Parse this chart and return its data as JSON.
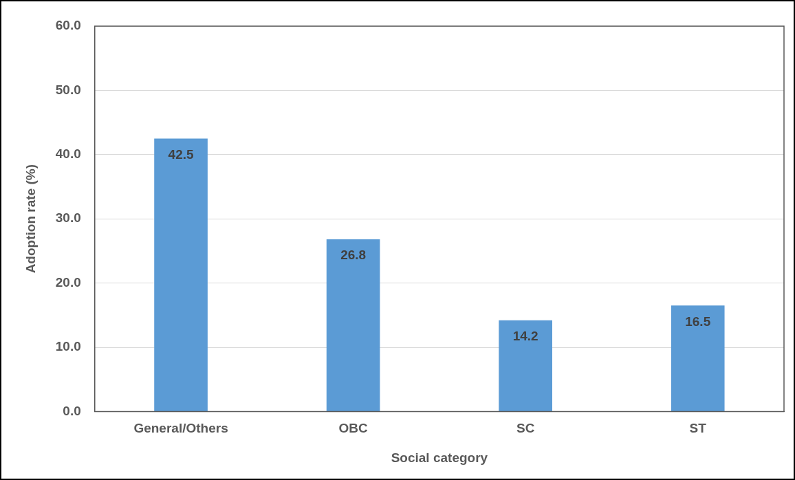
{
  "chart_data": {
    "type": "bar",
    "xlabel": "Social category",
    "ylabel": "Adoption rate (%)",
    "categories": [
      "General/Others",
      "OBC",
      "SC",
      "ST"
    ],
    "values": [
      42.5,
      26.8,
      14.2,
      16.5
    ],
    "color": "#5b9bd5",
    "ylim": [
      0,
      60
    ],
    "yticks": [
      {
        "value": 0,
        "label": "0.0"
      },
      {
        "value": 10,
        "label": "10.0"
      },
      {
        "value": 20,
        "label": "20.0"
      },
      {
        "value": 30,
        "label": "30.0"
      },
      {
        "value": 40,
        "label": "40.0"
      },
      {
        "value": 50,
        "label": "50.0"
      },
      {
        "value": 60,
        "label": "60.0"
      }
    ],
    "grid": "y",
    "legend": false,
    "data_labels": true
  }
}
